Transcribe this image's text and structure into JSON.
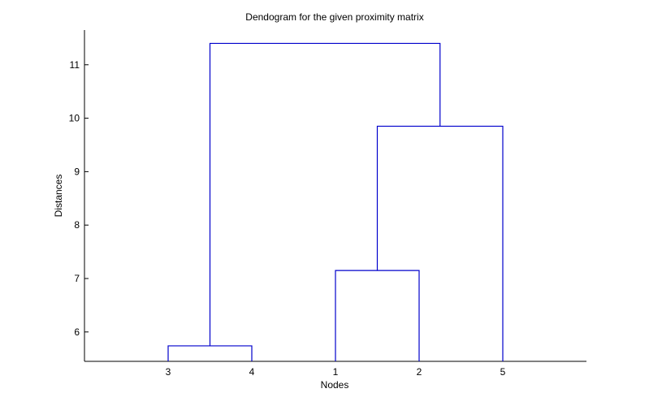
{
  "chart_data": {
    "type": "dendrogram",
    "title": "Dendogram for the given proximity matrix",
    "xlabel": "Nodes",
    "ylabel": "Distances",
    "leaf_order": [
      "3",
      "4",
      "1",
      "2",
      "5"
    ],
    "ylim": [
      5.45,
      11.65
    ],
    "yticks": [
      6,
      7,
      8,
      9,
      10,
      11
    ],
    "line_color": "#0000cc",
    "merges": [
      {
        "left": "3",
        "right": "4",
        "height": 5.74
      },
      {
        "left": "1",
        "right": "2",
        "height": 7.15
      },
      {
        "left": "(1,2)",
        "right": "5",
        "height": 9.85
      },
      {
        "left": "(3,4)",
        "right": "(1,2,5)",
        "height": 11.4
      }
    ]
  }
}
